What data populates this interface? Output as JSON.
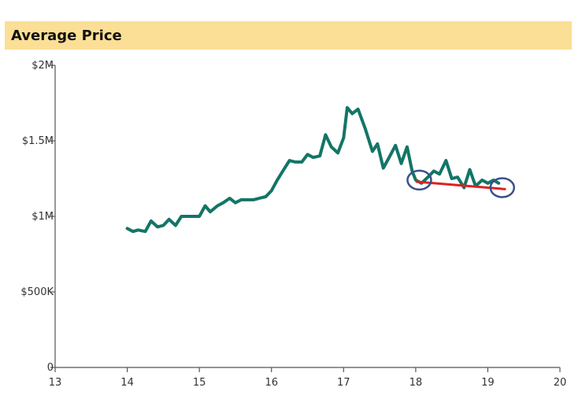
{
  "chart_data": {
    "type": "line",
    "title": "Average Price",
    "xlabel": "",
    "ylabel": "",
    "xlim": [
      13,
      20
    ],
    "ylim": [
      0,
      2000000
    ],
    "x_ticks": [
      {
        "value": 13,
        "label": "13"
      },
      {
        "value": 14,
        "label": "14"
      },
      {
        "value": 15,
        "label": "15"
      },
      {
        "value": 16,
        "label": "16"
      },
      {
        "value": 17,
        "label": "17"
      },
      {
        "value": 18,
        "label": "18"
      },
      {
        "value": 19,
        "label": "19"
      },
      {
        "value": 20,
        "label": "20"
      }
    ],
    "y_ticks": [
      {
        "value": 0,
        "label": "0"
      },
      {
        "value": 500000,
        "label": "$500K"
      },
      {
        "value": 1000000,
        "label": "$1M"
      },
      {
        "value": 1500000,
        "label": "$1.5M"
      },
      {
        "value": 2000000,
        "label": "$2M"
      }
    ],
    "grid": false,
    "colors": {
      "series": "#137566",
      "trend": "#e02020",
      "highlight": "#3a4f8c",
      "title_bg": "#fbdf96"
    },
    "series": [
      {
        "x": [
          14.0,
          14.08,
          14.15,
          14.25,
          14.33,
          14.42,
          14.5,
          14.58,
          14.67,
          14.75,
          14.83,
          14.92,
          15.0,
          15.08,
          15.15,
          15.25,
          15.33,
          15.42,
          15.5,
          15.58,
          15.67,
          15.75,
          15.83,
          15.92,
          16.0,
          16.08,
          16.17,
          16.25,
          16.33,
          16.42,
          16.5,
          16.58,
          16.67,
          16.75,
          16.83,
          16.92,
          17.0,
          17.05,
          17.12,
          17.2,
          17.3,
          17.4,
          17.47,
          17.55,
          17.62,
          17.72,
          17.8,
          17.88,
          17.95,
          18.0,
          18.08,
          18.17,
          18.25,
          18.33,
          18.42,
          18.5,
          18.58,
          18.67,
          18.75,
          18.83,
          18.92,
          19.0,
          19.08,
          19.15
        ],
        "values": [
          920000,
          900000,
          910000,
          900000,
          970000,
          930000,
          940000,
          980000,
          940000,
          1000000,
          1000000,
          1000000,
          1000000,
          1070000,
          1030000,
          1070000,
          1090000,
          1120000,
          1090000,
          1110000,
          1110000,
          1110000,
          1120000,
          1130000,
          1170000,
          1240000,
          1310000,
          1370000,
          1360000,
          1360000,
          1410000,
          1390000,
          1400000,
          1540000,
          1460000,
          1420000,
          1520000,
          1720000,
          1680000,
          1710000,
          1580000,
          1430000,
          1480000,
          1320000,
          1380000,
          1470000,
          1350000,
          1460000,
          1300000,
          1240000,
          1220000,
          1260000,
          1300000,
          1280000,
          1370000,
          1250000,
          1260000,
          1190000,
          1310000,
          1200000,
          1240000,
          1220000,
          1240000,
          1220000
        ]
      }
    ],
    "trend_line": {
      "x": [
        18.0,
        19.25
      ],
      "values": [
        1230000,
        1180000
      ]
    },
    "highlights": [
      {
        "x": 18.05,
        "value": 1240000
      },
      {
        "x": 19.2,
        "value": 1190000
      }
    ]
  }
}
